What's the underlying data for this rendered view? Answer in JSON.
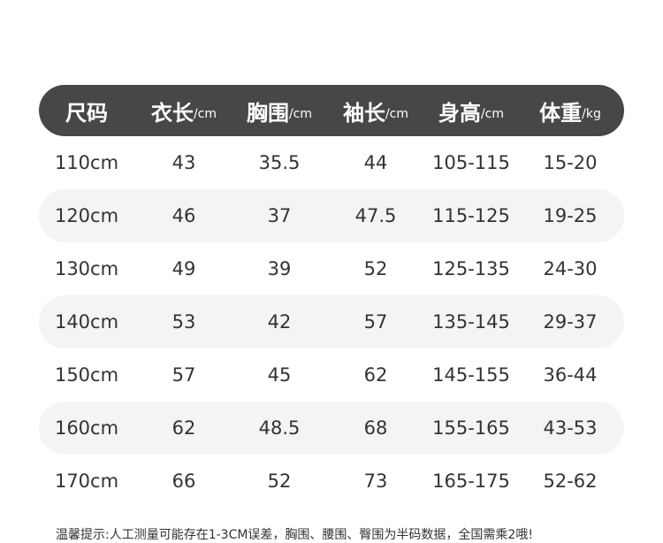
{
  "colors": {
    "header_bg": "#474747",
    "alt_row_bg": "#f4f4f4",
    "text": "#333333"
  },
  "headers": [
    {
      "label": "尺码",
      "unit": ""
    },
    {
      "label": "衣长",
      "unit": "/cm"
    },
    {
      "label": "胸围",
      "unit": "/cm"
    },
    {
      "label": "袖长",
      "unit": "/cm"
    },
    {
      "label": "身高",
      "unit": "/cm"
    },
    {
      "label": "体重",
      "unit": "/kg"
    }
  ],
  "rows": [
    [
      "110cm",
      "43",
      "35.5",
      "44",
      "105-115",
      "15-20"
    ],
    [
      "120cm",
      "46",
      "37",
      "47.5",
      "115-125",
      "19-25"
    ],
    [
      "130cm",
      "49",
      "39",
      "52",
      "125-135",
      "24-30"
    ],
    [
      "140cm",
      "53",
      "42",
      "57",
      "135-145",
      "29-37"
    ],
    [
      "150cm",
      "57",
      "45",
      "62",
      "145-155",
      "36-44"
    ],
    [
      "160cm",
      "62",
      "48.5",
      "68",
      "155-165",
      "43-53"
    ],
    [
      "170cm",
      "66",
      "52",
      "73",
      "165-175",
      "52-62"
    ]
  ],
  "note": "温馨提示:人工测量可能存在1-3CM误差，胸围、腰围、臀围为半码数据，全国需乘2哦!"
}
